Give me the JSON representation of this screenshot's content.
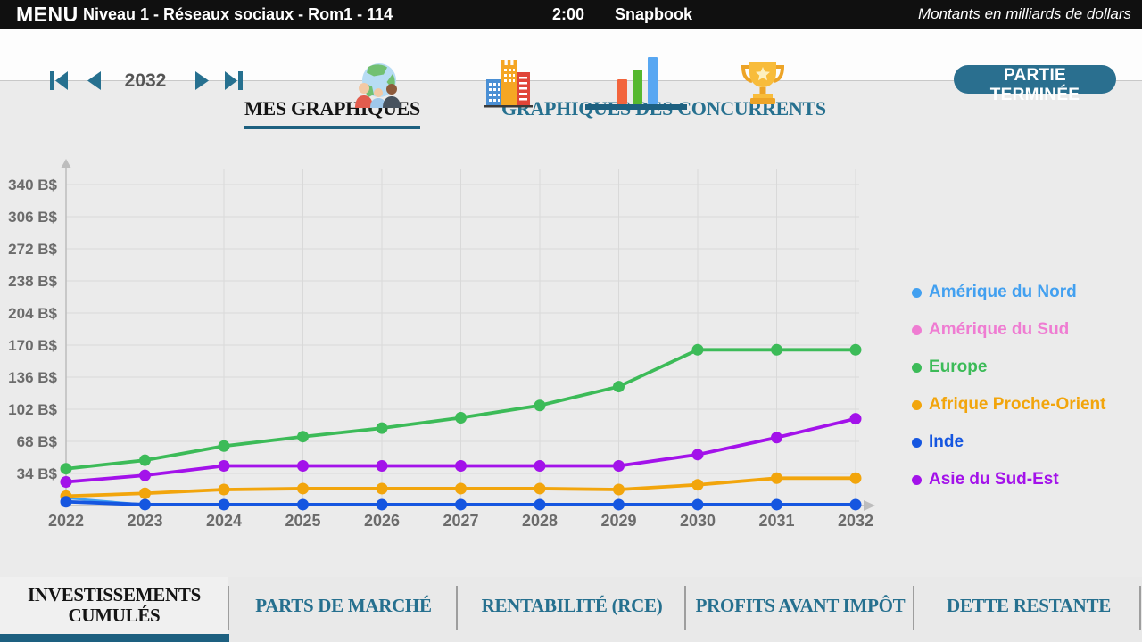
{
  "top_bar": {
    "menu_label": "MENU",
    "title": "Niveau 1 - Réseaux sociaux - Rom1 - 114",
    "time": "2:00",
    "company": "Snapbook",
    "units_note": "Montants en milliards de dollars"
  },
  "nav": {
    "year": "2032",
    "end_button_label": "PARTIE TERMINÉE",
    "icons": [
      {
        "name": "world-population-icon"
      },
      {
        "name": "city-icon"
      },
      {
        "name": "bar-chart-icon",
        "selected": true
      },
      {
        "name": "trophy-icon"
      }
    ]
  },
  "top_tabs": {
    "my_charts": "MES GRAPHIQUES",
    "competitor_charts": "GRAPHIQUES DES CONCURRENTS"
  },
  "chart_data": {
    "type": "line",
    "title": "",
    "xlabel": "",
    "ylabel": "",
    "unit": "B$",
    "x": [
      2022,
      2023,
      2024,
      2025,
      2026,
      2027,
      2028,
      2029,
      2030,
      2031,
      2032
    ],
    "yticks": [
      34,
      68,
      102,
      136,
      170,
      204,
      238,
      272,
      306,
      340
    ],
    "ytick_suffix": " B$",
    "ylim": [
      0,
      357
    ],
    "grid": true,
    "legend_position": "right",
    "series": [
      {
        "name": "Amérique du Nord",
        "color": "#42a0f0",
        "values": [
          8,
          1,
          1,
          1,
          1,
          1,
          1,
          1,
          1,
          1,
          1
        ]
      },
      {
        "name": "Amérique du Sud",
        "color": "#ef7cd2",
        "values": [
          4,
          1,
          1,
          1,
          1,
          1,
          1,
          1,
          1,
          1,
          1
        ]
      },
      {
        "name": "Europe",
        "color": "#3cbb58",
        "values": [
          39,
          48,
          63,
          73,
          82,
          93,
          106,
          126,
          165,
          165,
          165
        ]
      },
      {
        "name": "Afrique Proche-Orient",
        "color": "#f2a50c",
        "values": [
          10,
          13,
          17,
          18,
          18,
          18,
          18,
          17,
          22,
          29,
          29
        ]
      },
      {
        "name": "Inde",
        "color": "#1556e0",
        "values": [
          4,
          1,
          1,
          1,
          1,
          1,
          1,
          1,
          1,
          1,
          1
        ]
      },
      {
        "name": "Asie du Sud-Est",
        "color": "#a312ea",
        "values": [
          25,
          32,
          42,
          42,
          42,
          42,
          42,
          42,
          54,
          72,
          92
        ]
      }
    ]
  },
  "bottom_tabs": [
    {
      "label": "INVESTISSEMENTS CUMULÉS",
      "active": true
    },
    {
      "label": "PARTS DE MARCHÉ",
      "active": false
    },
    {
      "label": "RENTABILITÉ (RCE)",
      "active": false
    },
    {
      "label": "PROFITS AVANT IMPÔT",
      "active": false
    },
    {
      "label": "DETTE RESTANTE",
      "active": false
    }
  ]
}
